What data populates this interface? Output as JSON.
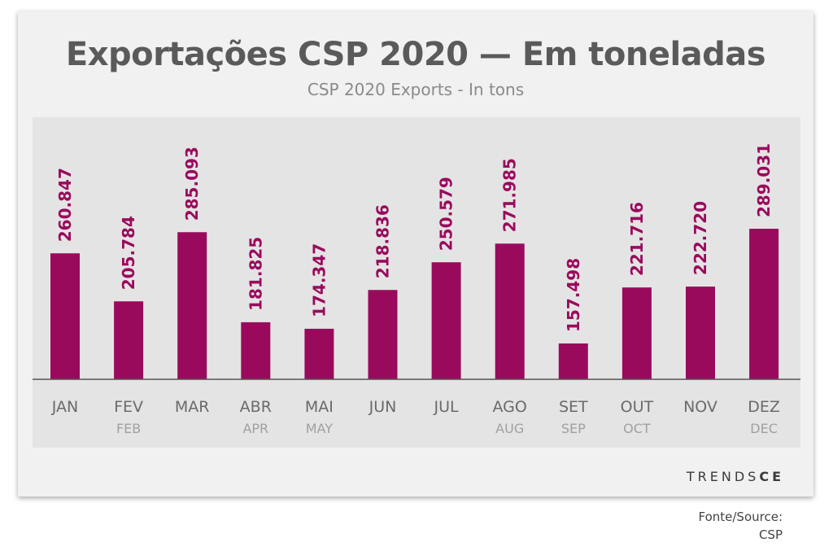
{
  "title": "Exportações CSP 2020 — Em toneladas",
  "subtitle": "CSP 2020 Exports - In tons",
  "logo": {
    "text_a": "TRENDS",
    "text_b": "CE"
  },
  "source": {
    "line1": "Fonte/Source:",
    "line2": "CSP"
  },
  "colors": {
    "bar": "#9a0a5c",
    "label": "#9a0a5c",
    "axis": "#555555",
    "tick": "#6a6a6a",
    "tick_en": "#a0a0a0"
  },
  "chart_data": {
    "type": "bar",
    "categories": [
      "JAN",
      "FEV",
      "MAR",
      "ABR",
      "MAI",
      "JUN",
      "JUL",
      "AGO",
      "SET",
      "OUT",
      "NOV",
      "DEZ"
    ],
    "categories_en": [
      "",
      "FEB",
      "",
      "APR",
      "MAY",
      "",
      "",
      "AUG",
      "SEP",
      "OCT",
      "",
      "DEC"
    ],
    "values": [
      260847,
      205784,
      285093,
      181825,
      174347,
      218836,
      250579,
      271985,
      157498,
      221716,
      222720,
      289031
    ],
    "value_labels": [
      "260.847",
      "205.784",
      "285.093",
      "181.825",
      "174.347",
      "218.836",
      "250.579",
      "271.985",
      "157.498",
      "221.716",
      "222.720",
      "289.031"
    ],
    "title": "Exportações CSP 2020 — Em toneladas",
    "xlabel": "",
    "ylabel": "",
    "grid": false,
    "legend": "none"
  }
}
